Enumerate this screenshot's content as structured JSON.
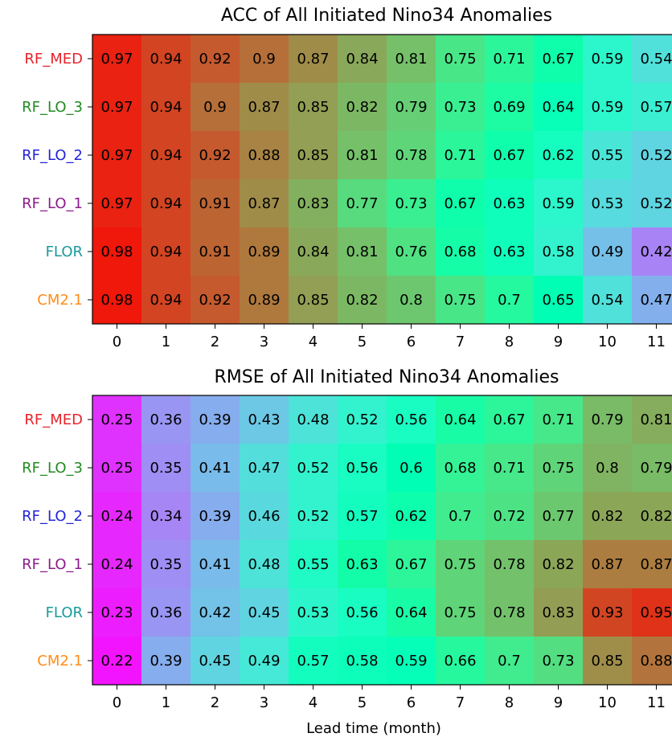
{
  "chart_data": [
    {
      "type": "heatmap",
      "title": "ACC of All Initiated Nino34 Anomalies",
      "xlabel": "",
      "x": [
        0,
        1,
        2,
        3,
        4,
        5,
        6,
        7,
        8,
        9,
        10,
        11
      ],
      "rows": [
        "RF_MED",
        "RF_LO_3",
        "RF_LO_2",
        "RF_LO_1",
        "FLOR",
        "CM2.1"
      ],
      "row_colors": [
        "#e8232a",
        "#228b22",
        "#2424d8",
        "#8b1c8b",
        "#1a9a9a",
        "#ff8c1a"
      ],
      "values": [
        [
          0.97,
          0.94,
          0.92,
          0.9,
          0.87,
          0.84,
          0.81,
          0.75,
          0.71,
          0.67,
          0.59,
          0.54
        ],
        [
          0.97,
          0.94,
          0.9,
          0.87,
          0.85,
          0.82,
          0.79,
          0.73,
          0.69,
          0.64,
          0.59,
          0.57
        ],
        [
          0.97,
          0.94,
          0.92,
          0.88,
          0.85,
          0.81,
          0.78,
          0.71,
          0.67,
          0.62,
          0.55,
          0.52
        ],
        [
          0.97,
          0.94,
          0.91,
          0.87,
          0.83,
          0.77,
          0.73,
          0.67,
          0.63,
          0.59,
          0.53,
          0.52
        ],
        [
          0.98,
          0.94,
          0.91,
          0.89,
          0.84,
          0.81,
          0.76,
          0.68,
          0.63,
          0.58,
          0.49,
          0.42
        ],
        [
          0.98,
          0.94,
          0.92,
          0.89,
          0.85,
          0.82,
          0.8,
          0.75,
          0.7,
          0.65,
          0.54,
          0.47
        ]
      ],
      "value_range": [
        0.3,
        1.0
      ],
      "colormap": "rainbow"
    },
    {
      "type": "heatmap",
      "title": "RMSE of All Initiated Nino34 Anomalies",
      "xlabel": "Lead time (month)",
      "x": [
        0,
        1,
        2,
        3,
        4,
        5,
        6,
        7,
        8,
        9,
        10,
        11
      ],
      "rows": [
        "RF_MED",
        "RF_LO_3",
        "RF_LO_2",
        "RF_LO_1",
        "FLOR",
        "CM2.1"
      ],
      "row_colors": [
        "#e8232a",
        "#228b22",
        "#2424d8",
        "#8b1c8b",
        "#1a9a9a",
        "#ff8c1a"
      ],
      "values": [
        [
          0.25,
          0.36,
          0.39,
          0.43,
          0.48,
          0.52,
          0.56,
          0.64,
          0.67,
          0.71,
          0.79,
          0.81
        ],
        [
          0.25,
          0.35,
          0.41,
          0.47,
          0.52,
          0.56,
          0.6,
          0.68,
          0.71,
          0.75,
          0.8,
          0.79
        ],
        [
          0.24,
          0.34,
          0.39,
          0.46,
          0.52,
          0.57,
          0.62,
          0.7,
          0.72,
          0.77,
          0.82,
          0.82
        ],
        [
          0.24,
          0.35,
          0.41,
          0.48,
          0.55,
          0.63,
          0.67,
          0.75,
          0.78,
          0.82,
          0.87,
          0.87
        ],
        [
          0.23,
          0.36,
          0.42,
          0.45,
          0.53,
          0.56,
          0.64,
          0.75,
          0.78,
          0.83,
          0.93,
          0.95
        ],
        [
          0.22,
          0.39,
          0.45,
          0.49,
          0.57,
          0.58,
          0.59,
          0.66,
          0.7,
          0.73,
          0.85,
          0.88
        ]
      ],
      "value_range": [
        0.2,
        1.0
      ],
      "colormap": "rainbow"
    }
  ]
}
